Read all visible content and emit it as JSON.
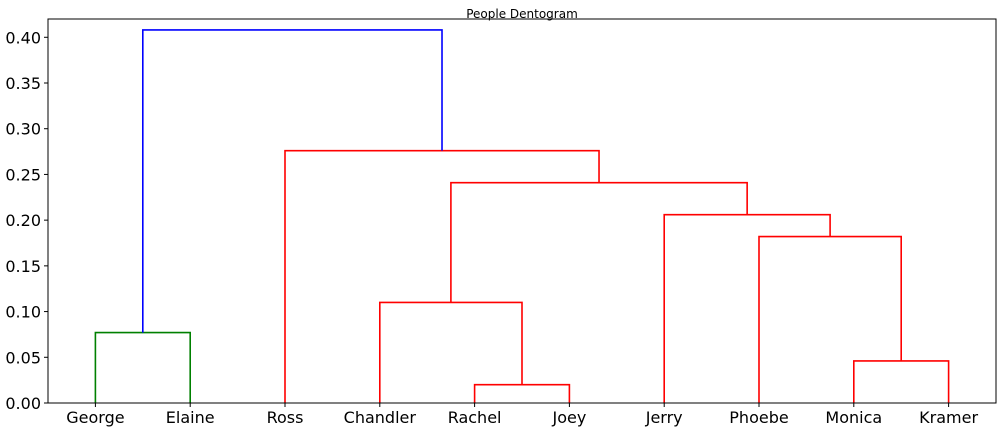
{
  "chart_data": {
    "type": "dendrogram",
    "title": "People Dentogram",
    "xlabel": "",
    "ylabel": "",
    "leaves": [
      "George",
      "Elaine",
      "Ross",
      "Chandler",
      "Rachel",
      "Joey",
      "Jerry",
      "Phoebe",
      "Monica",
      "Kramer"
    ],
    "yticks": [
      "0.00",
      "0.05",
      "0.10",
      "0.15",
      "0.20",
      "0.25",
      "0.30",
      "0.35",
      "0.40"
    ],
    "ylim": [
      0,
      0.42
    ],
    "grid": false,
    "merges": [
      {
        "id": "m1",
        "left": "Rachel",
        "right": "Joey",
        "height": 0.02,
        "color": "#ff0000"
      },
      {
        "id": "m2",
        "left": "Monica",
        "right": "Kramer",
        "height": 0.046,
        "color": "#ff0000"
      },
      {
        "id": "m3",
        "left": "George",
        "right": "Elaine",
        "height": 0.077,
        "color": "#008000"
      },
      {
        "id": "m4",
        "left": "Chandler",
        "right": "m1",
        "height": 0.11,
        "color": "#ff0000"
      },
      {
        "id": "m5",
        "left": "Phoebe",
        "right": "m2",
        "height": 0.182,
        "color": "#ff0000"
      },
      {
        "id": "m6",
        "left": "Jerry",
        "right": "m5",
        "height": 0.206,
        "color": "#ff0000"
      },
      {
        "id": "m7",
        "left": "m4",
        "right": "m6",
        "height": 0.241,
        "color": "#ff0000"
      },
      {
        "id": "m8",
        "left": "Ross",
        "right": "m7",
        "height": 0.276,
        "color": "#ff0000"
      },
      {
        "id": "m9",
        "left": "m3",
        "right": "m8",
        "height": 0.408,
        "color": "#0000ff"
      }
    ]
  }
}
